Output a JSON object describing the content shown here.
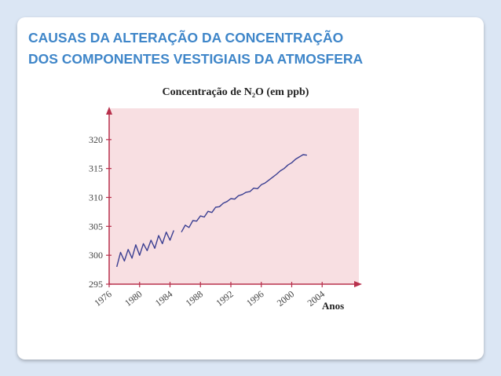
{
  "slide": {
    "title_lines": [
      "CAUSAS DA ALTERAÇÃO DA CONCENTRAÇÃO",
      "DOS COMPONENTES VESTIGIAIS DA ATMOSFERA"
    ]
  },
  "chart_data": {
    "type": "line",
    "title": "Concentração de N₂O (em ppb)",
    "x_label": "Anos",
    "x": [
      1977,
      1977.5,
      1978,
      1978.5,
      1979,
      1979.5,
      1980,
      1980.5,
      1981,
      1981.5,
      1982,
      1982.5,
      1983,
      1983.5,
      1984,
      1984.5,
      1985,
      1985.5,
      1986,
      1986.5,
      1987,
      1987.5,
      1988,
      1988.5,
      1989,
      1989.5,
      1990,
      1990.5,
      1991,
      1991.5,
      1992,
      1992.5,
      1993,
      1993.5,
      1994,
      1994.5,
      1995,
      1995.5,
      1996,
      1996.5,
      1997,
      1997.5,
      1998,
      1998.5,
      1999,
      1999.5,
      2000,
      2000.5,
      2001,
      2001.5,
      2002
    ],
    "values": [
      298.0,
      300.5,
      299.0,
      301.0,
      299.5,
      301.8,
      300.0,
      302.0,
      300.8,
      302.6,
      301.2,
      303.4,
      302.0,
      304.0,
      302.6,
      304.3,
      null,
      304.0,
      305.2,
      304.8,
      306.0,
      305.9,
      306.8,
      306.6,
      307.6,
      307.4,
      308.3,
      308.4,
      309.0,
      309.3,
      309.8,
      309.7,
      310.3,
      310.5,
      310.9,
      311.0,
      311.6,
      311.5,
      312.2,
      312.5,
      313.0,
      313.5,
      314.0,
      314.6,
      315.0,
      315.6,
      316.0,
      316.6,
      317.0,
      317.4,
      317.3
    ],
    "color": "#3b3f92",
    "axis_color": "#b8304c",
    "background": "#f8dfe2",
    "xlim": [
      1976,
      2008
    ],
    "ylim": [
      295,
      325
    ],
    "xticks": [
      1976,
      1980,
      1984,
      1988,
      1992,
      1996,
      2000,
      2004
    ],
    "yticks": [
      295,
      300,
      305,
      310,
      315,
      320
    ]
  }
}
